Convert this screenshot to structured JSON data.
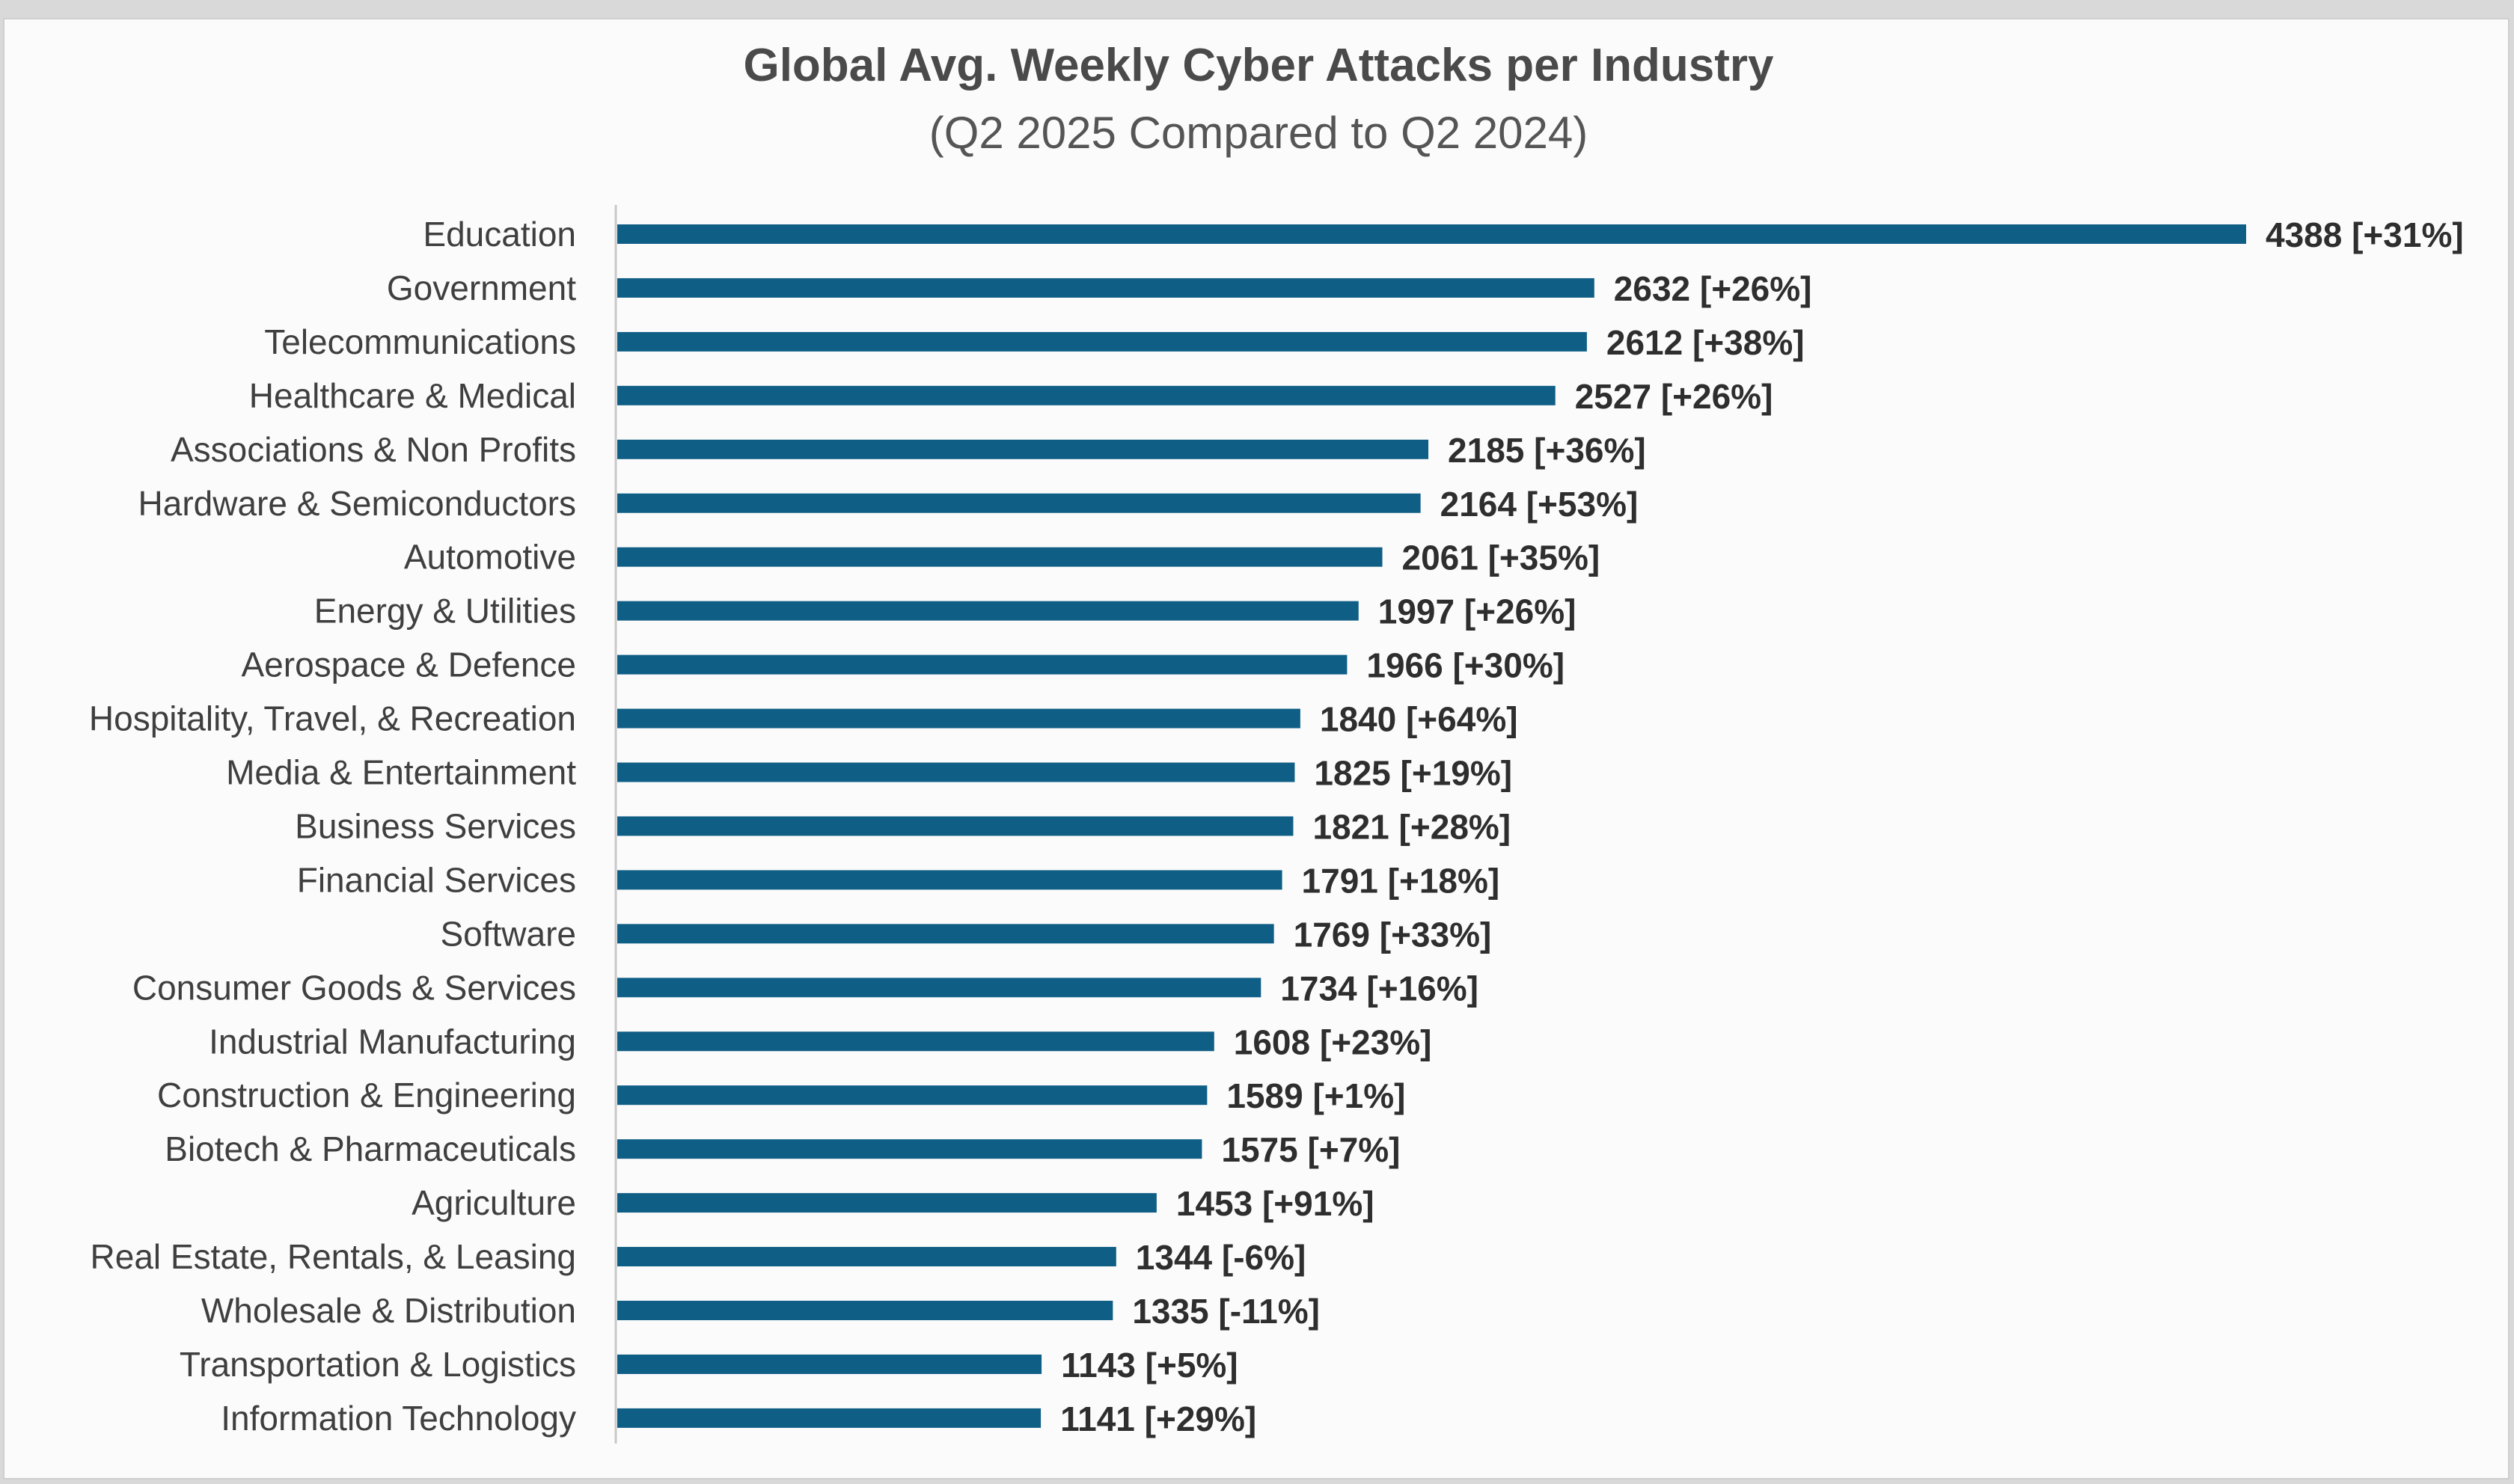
{
  "chart_data": {
    "type": "bar",
    "orientation": "horizontal",
    "title": "Global Avg. Weekly Cyber Attacks per Industry",
    "subtitle": "(Q2 2025 Compared to Q2 2024)",
    "xlabel": "",
    "ylabel": "",
    "grid": false,
    "legend": "none",
    "bar_color": "#0f5e85",
    "text_color": "#3f3f3f",
    "xlim": [
      0,
      4388
    ],
    "categories": [
      "Education",
      "Government",
      "Telecommunications",
      "Healthcare & Medical",
      "Associations & Non Profits",
      "Hardware & Semiconductors",
      "Automotive",
      "Energy & Utilities",
      "Aerospace & Defence",
      "Hospitality, Travel, & Recreation",
      "Media & Entertainment",
      "Business Services",
      "Financial Services",
      "Software",
      "Consumer Goods & Services",
      "Industrial Manufacturing",
      "Construction & Engineering",
      "Biotech & Pharmaceuticals",
      "Agriculture",
      "Real Estate, Rentals, & Leasing",
      "Wholesale & Distribution",
      "Transportation & Logistics",
      "Information Technology"
    ],
    "values": [
      4388,
      2632,
      2612,
      2527,
      2185,
      2164,
      2061,
      1997,
      1966,
      1840,
      1825,
      1821,
      1791,
      1769,
      1734,
      1608,
      1589,
      1575,
      1453,
      1344,
      1335,
      1143,
      1141
    ],
    "data_labels": [
      "4388 [+31%]",
      "2632 [+26%]",
      "2612 [+38%]",
      "2527 [+26%]",
      "2185 [+36%]",
      "2164 [+53%]",
      "2061 [+35%]",
      "1997 [+26%]",
      "1966 [+30%]",
      "1840 [+64%]",
      "1825 [+19%]",
      "1821 [+28%]",
      "1791 [+18%]",
      "1769 [+33%]",
      "1734 [+16%]",
      "1608 [+23%]",
      "1589 [+1%]",
      "1575 [+7%]",
      "1453 [+91%]",
      "1344 [-6%]",
      "1335 [-11%]",
      "1143 [+5%]",
      "1141 [+29%]"
    ]
  }
}
